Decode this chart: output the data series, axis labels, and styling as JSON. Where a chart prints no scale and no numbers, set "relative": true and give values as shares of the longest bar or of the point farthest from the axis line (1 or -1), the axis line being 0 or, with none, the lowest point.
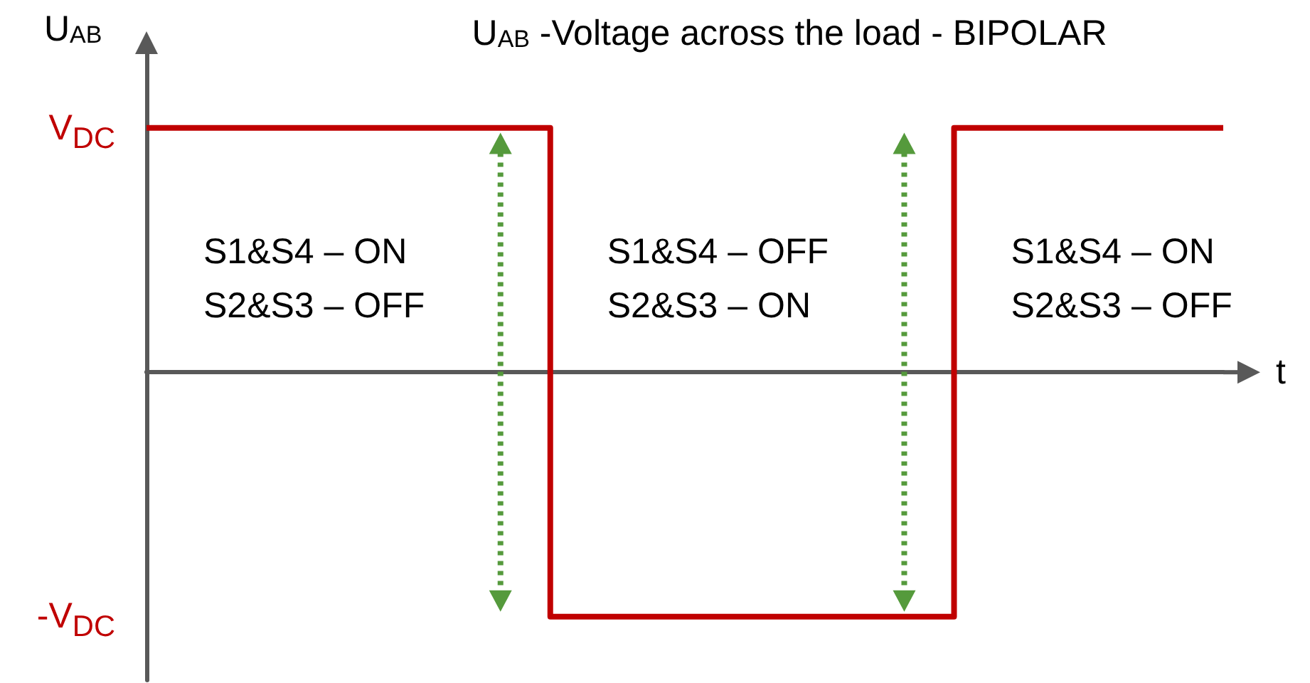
{
  "chart_data": {
    "type": "step",
    "title": "U$_{AB}$ -Voltage across the load - BIPOLAR",
    "ylabel": "U$_{AB}$",
    "xlabel": "t",
    "categories": [
      null,
      null,
      null,
      null,
      null,
      null,
      null,
      null,
      null
    ],
    "series": [
      {
        "color": "#c00000",
        "values": [
          1,
          1,
          1,
          -1,
          -1,
          -1,
          1,
          1,
          1
        ]
      }
    ],
    "relative": true,
    "tick_labels": false,
    "marker": "none",
    "grid": false,
    "annotations": [
      "V$_{DC}$",
      "-V$_{DC}$",
      "S1&S4 – ON\nS2&S3 – OFF",
      "S1&S4 – OFF\nS2&S3 – ON",
      "S1&S4 – ON\nS2&S3 – OFF"
    ]
  }
}
